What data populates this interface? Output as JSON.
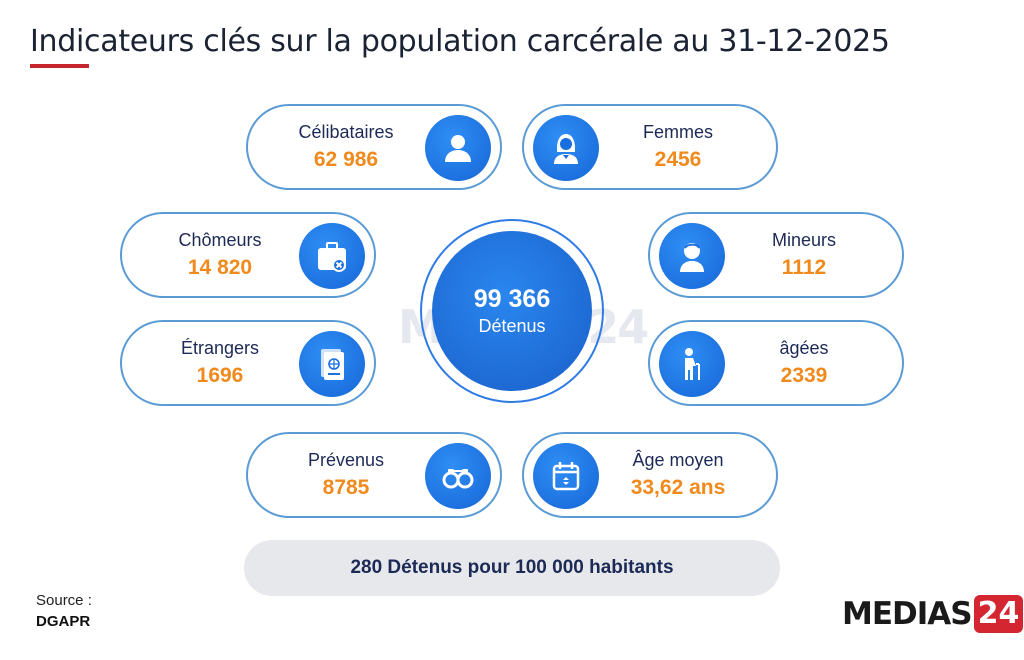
{
  "title": "Indicateurs clés sur la population carcérale au 31-12-2025",
  "center": {
    "value": "99 366",
    "label": "Détenus"
  },
  "indicators": [
    {
      "label": "Célibataires",
      "value": "62 986",
      "icon": "person-icon"
    },
    {
      "label": "Femmes",
      "value": "2456",
      "icon": "woman-icon"
    },
    {
      "label": "Chômeurs",
      "value": "14 820",
      "icon": "briefcase-x-icon"
    },
    {
      "label": "Mineurs",
      "value": "1112",
      "icon": "child-icon"
    },
    {
      "label": "Étrangers",
      "value": "1696",
      "icon": "passport-icon"
    },
    {
      "label": "âgées",
      "value": "2339",
      "icon": "elderly-icon"
    },
    {
      "label": "Prévenus",
      "value": "8785",
      "icon": "handcuffs-icon"
    },
    {
      "label": "Âge moyen",
      "value": "33,62 ans",
      "icon": "calendar-icon"
    }
  ],
  "rate": "280 Détenus pour 100 000 habitants",
  "source": {
    "label": "Source :",
    "value": "DGAPR"
  },
  "watermark": "MEDIAS24",
  "logo": {
    "word": "MEDIAS",
    "number": "24"
  },
  "colors": {
    "accent_blue": "#1a6fe0",
    "value_orange": "#f08a1c",
    "underline_red": "#c8262f",
    "logo_red": "#d32630"
  }
}
